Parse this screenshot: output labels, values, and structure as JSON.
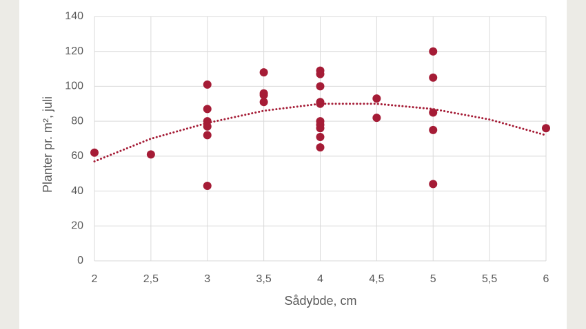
{
  "chart_data": {
    "type": "scatter",
    "x_label": "Sådybde, cm",
    "y_label": "Planter pr. m², juli",
    "series": [
      {
        "color": "#a51c36",
        "x": [
          2,
          2.5,
          3,
          3,
          3,
          3,
          3,
          3,
          3.5,
          3.5,
          3.5,
          3.5,
          4,
          4,
          4,
          4,
          4,
          4,
          4,
          4,
          4,
          4,
          4.5,
          4.5,
          5,
          5,
          5,
          5,
          5,
          6
        ],
        "values": [
          62,
          61,
          101,
          87,
          80,
          77,
          72,
          43,
          108,
          96,
          95,
          91,
          109,
          107,
          100,
          91,
          90,
          80,
          78,
          76,
          71,
          65,
          93,
          82,
          120,
          105,
          85,
          75,
          44,
          76
        ]
      }
    ],
    "trendline": {
      "color": "#a51c36",
      "x": [
        2,
        2.5,
        3,
        3.5,
        4,
        4.5,
        5,
        5.5,
        6
      ],
      "values": [
        57,
        70,
        79,
        86,
        90,
        90,
        87,
        81,
        72
      ]
    },
    "xlim": [
      2,
      6
    ],
    "xticks": [
      2,
      {
        "value": 2.5,
        "label": "2,5"
      },
      3,
      {
        "value": 3.5,
        "label": "3,5"
      },
      4,
      {
        "value": 4.5,
        "label": "4,5"
      },
      5,
      {
        "value": 5.5,
        "label": "5,5"
      },
      6
    ],
    "ylim": [
      0,
      140
    ],
    "yticks": [
      0,
      20,
      40,
      60,
      80,
      100,
      120,
      140
    ],
    "grid": true
  }
}
